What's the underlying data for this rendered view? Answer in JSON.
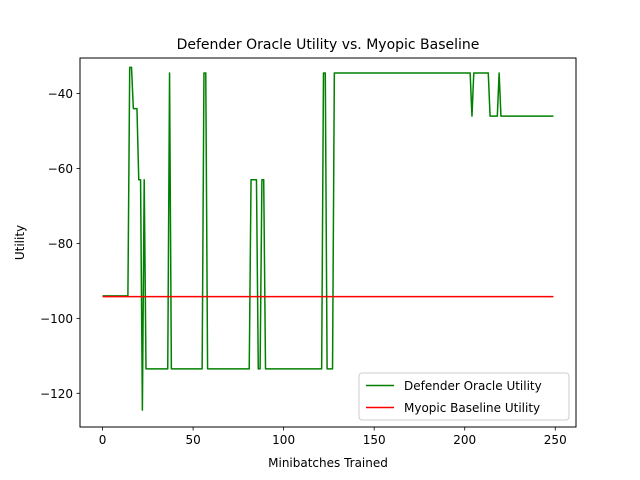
{
  "chart_data": {
    "type": "line",
    "title": "Defender Oracle Utility vs. Myopic Baseline",
    "xlabel": "Minibatches Trained",
    "ylabel": "Utility",
    "xlim": [
      -12.45,
      261.45
    ],
    "ylim": [
      -129.0,
      -30.5
    ],
    "xticks": [
      0,
      50,
      100,
      150,
      200,
      250
    ],
    "yticks": [
      -120,
      -100,
      -80,
      -60,
      -40
    ],
    "grid": false,
    "legend_position": "lower-right",
    "series": [
      {
        "name": "Defender Oracle Utility",
        "color": "#008000",
        "x": [
          0,
          14,
          15,
          16,
          17,
          18,
          19,
          20,
          21,
          22,
          23,
          24,
          25,
          36,
          37,
          38,
          55,
          56,
          57,
          58,
          81,
          82,
          85,
          86,
          87,
          88,
          89,
          90,
          91,
          121,
          122,
          123,
          124,
          127,
          128,
          129,
          203,
          204,
          205,
          213,
          214,
          218,
          219,
          220,
          249
        ],
        "y": [
          -94,
          -94,
          -33,
          -33,
          -44,
          -44,
          -44,
          -63,
          -63,
          -124.5,
          -63,
          -113.5,
          -113.5,
          -113.5,
          -34.5,
          -113.5,
          -113.5,
          -34.5,
          -34.5,
          -113.5,
          -113.5,
          -63,
          -63,
          -113.5,
          -113.5,
          -63,
          -63,
          -113.5,
          -113.5,
          -113.5,
          -34.5,
          -34.5,
          -113.5,
          -113.5,
          -34.5,
          -34.5,
          -34.5,
          -46,
          -34.5,
          -34.5,
          -46,
          -46,
          -34.5,
          -46,
          -46
        ]
      },
      {
        "name": "Myopic Baseline Utility",
        "color": "#ff0000",
        "x": [
          0,
          249
        ],
        "y": [
          -94.2,
          -94.2
        ]
      }
    ]
  }
}
